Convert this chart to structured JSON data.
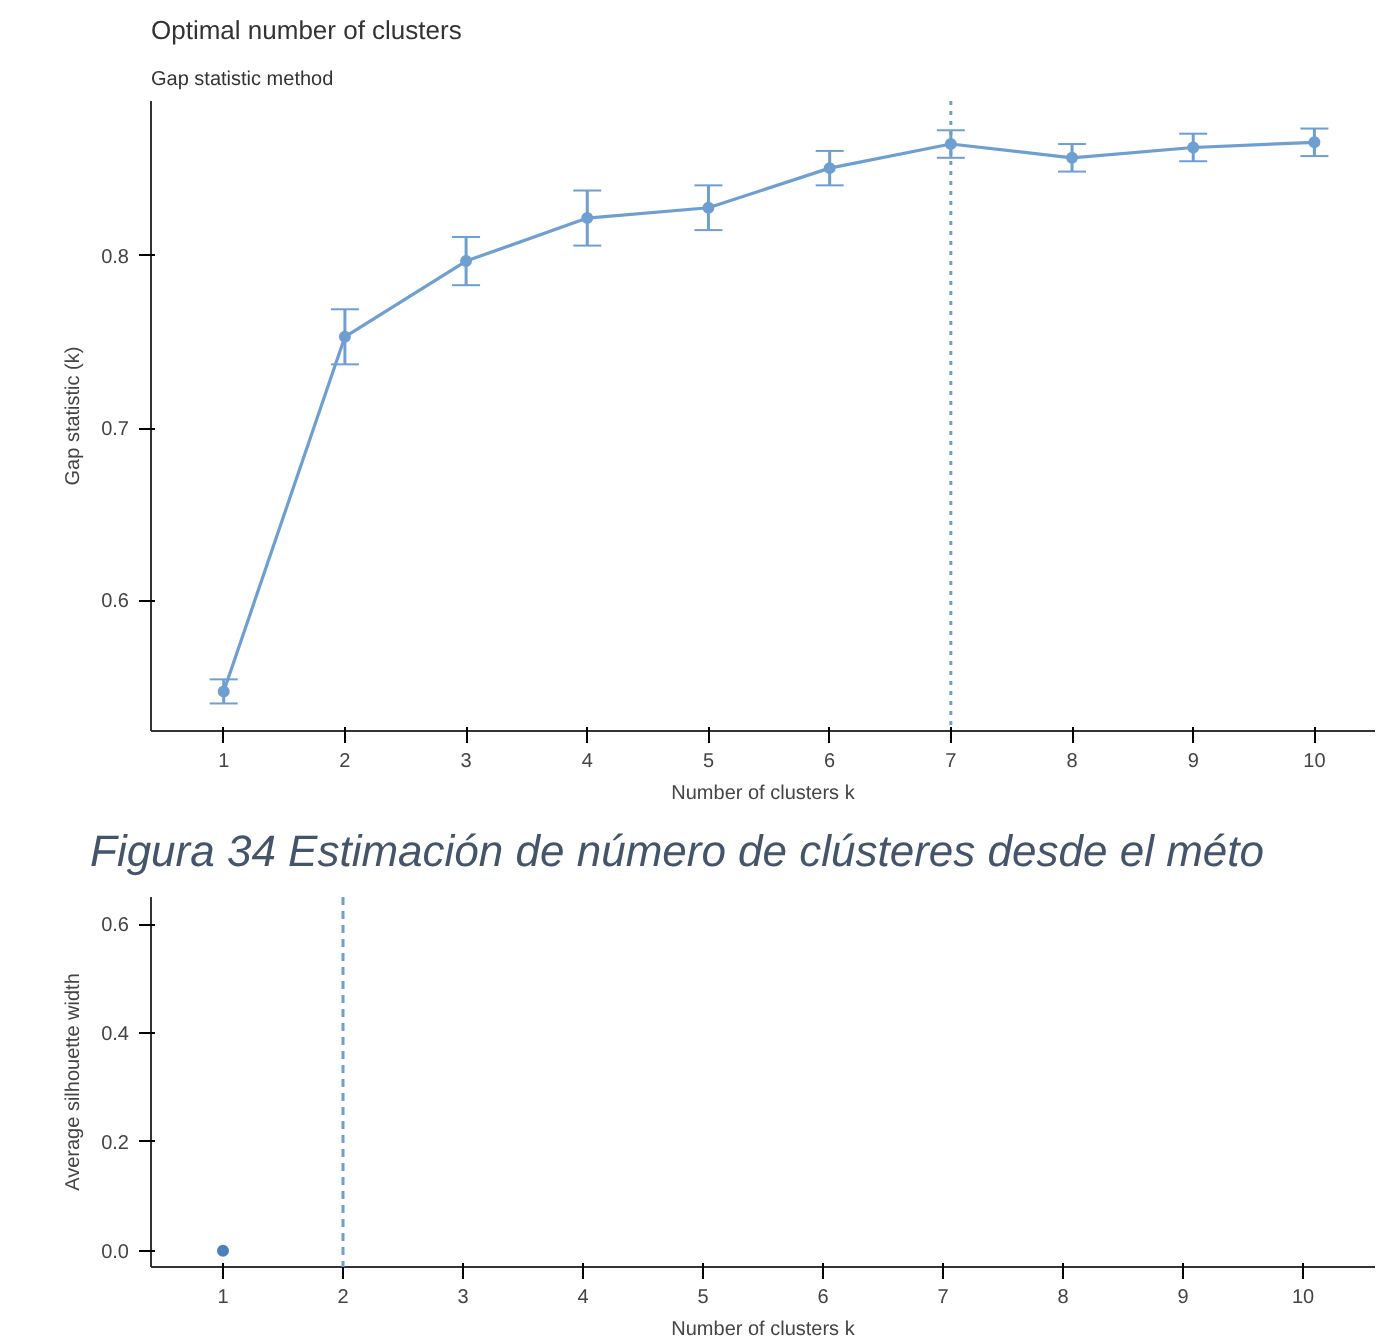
{
  "chart_data": [
    {
      "type": "line",
      "title": "Optimal number of clusters",
      "subtitle": "Gap statistic method",
      "xlabel": "Number of clusters k",
      "ylabel": "Gap statistic (k)",
      "x": [
        1,
        2,
        3,
        4,
        5,
        6,
        7,
        8,
        9,
        10
      ],
      "series": [
        {
          "color": "#6f9fd0",
          "values": [
            0.547,
            0.753,
            0.797,
            0.822,
            0.828,
            0.851,
            0.865,
            0.857,
            0.863,
            0.866
          ],
          "errors": [
            0.007,
            0.016,
            0.014,
            0.016,
            0.013,
            0.01,
            0.008,
            0.008,
            0.008,
            0.008
          ]
        }
      ],
      "xlim": [
        0.4,
        10.5
      ],
      "xticks": [
        1,
        2,
        3,
        4,
        5,
        6,
        7,
        8,
        9,
        10
      ],
      "ylim": [
        0.524,
        0.89
      ],
      "yticks": [
        0.6,
        0.7,
        0.8
      ],
      "ref_lines": [
        {
          "axis": "x",
          "value": 7,
          "color": "#6f9fd0",
          "line_style": "dotted"
        }
      ],
      "marker": "circle",
      "grid": false,
      "annotations": [
        "Figura  34 Estimación de número de clústeres desde el méto"
      ]
    },
    {
      "type": "line",
      "xlabel": "Number of clusters k",
      "ylabel": "Average silhouette width",
      "series": [
        {
          "color": "#4a80bb",
          "x": [
            1
          ],
          "values": [
            0.0
          ]
        }
      ],
      "xlim": [
        0.4,
        10.6
      ],
      "xticks": [
        1,
        2,
        3,
        4,
        5,
        6,
        7,
        8,
        9,
        10
      ],
      "ylim": [
        -0.03,
        0.65
      ],
      "yticks": [
        {
          "value": 0.0,
          "label": "0.0"
        },
        {
          "value": 0.2,
          "label": "0.2"
        },
        {
          "value": 0.4,
          "label": "0.4"
        },
        {
          "value": 0.6,
          "label": "0.6"
        }
      ],
      "ref_lines": [
        {
          "axis": "x",
          "value": 2,
          "color": "#6f9fd0",
          "line_style": "dashed"
        }
      ],
      "marker": "circle",
      "grid": false
    }
  ]
}
